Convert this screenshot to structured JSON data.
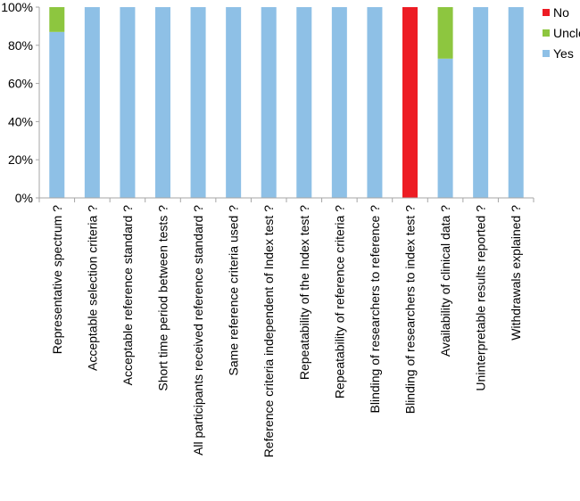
{
  "chart_data": {
    "type": "bar",
    "stacked": true,
    "percent": true,
    "ylim": [
      0,
      100
    ],
    "yticks": [
      "0%",
      "20%",
      "40%",
      "60%",
      "80%",
      "100%"
    ],
    "grid": false,
    "legend_position": "top-right",
    "categories": [
      "Representative spectrum ?",
      "Acceptable selection criteria ?",
      "Acceptable reference standard ?",
      "Short time period between tests ?",
      "All participants received reference standard ?",
      "Same reference criteria used ?",
      "Reference criteria independent of Index test ?",
      "Repeatability of the Index test ?",
      "Repeatability of reference criteria ?",
      "Blinding of researchers to reference ?",
      "Blinding of researchers to index test ?",
      "Availability of clinical data ?",
      "Uninterpretable results reported ?",
      "Withdrawals explained ?"
    ],
    "series": [
      {
        "name": "Yes",
        "color": "#8ec0e6",
        "values": [
          87,
          100,
          100,
          100,
          100,
          100,
          100,
          100,
          100,
          100,
          0,
          73,
          100,
          100
        ]
      },
      {
        "name": "Unclear",
        "color": "#8dc63f",
        "values": [
          13,
          0,
          0,
          0,
          0,
          0,
          0,
          0,
          0,
          0,
          0,
          27,
          0,
          0
        ]
      },
      {
        "name": "No",
        "color": "#ed1c24",
        "values": [
          0,
          0,
          0,
          0,
          0,
          0,
          0,
          0,
          0,
          0,
          100,
          0,
          0,
          0
        ]
      }
    ],
    "legend_order": [
      "No",
      "Unclear",
      "Yes"
    ]
  }
}
